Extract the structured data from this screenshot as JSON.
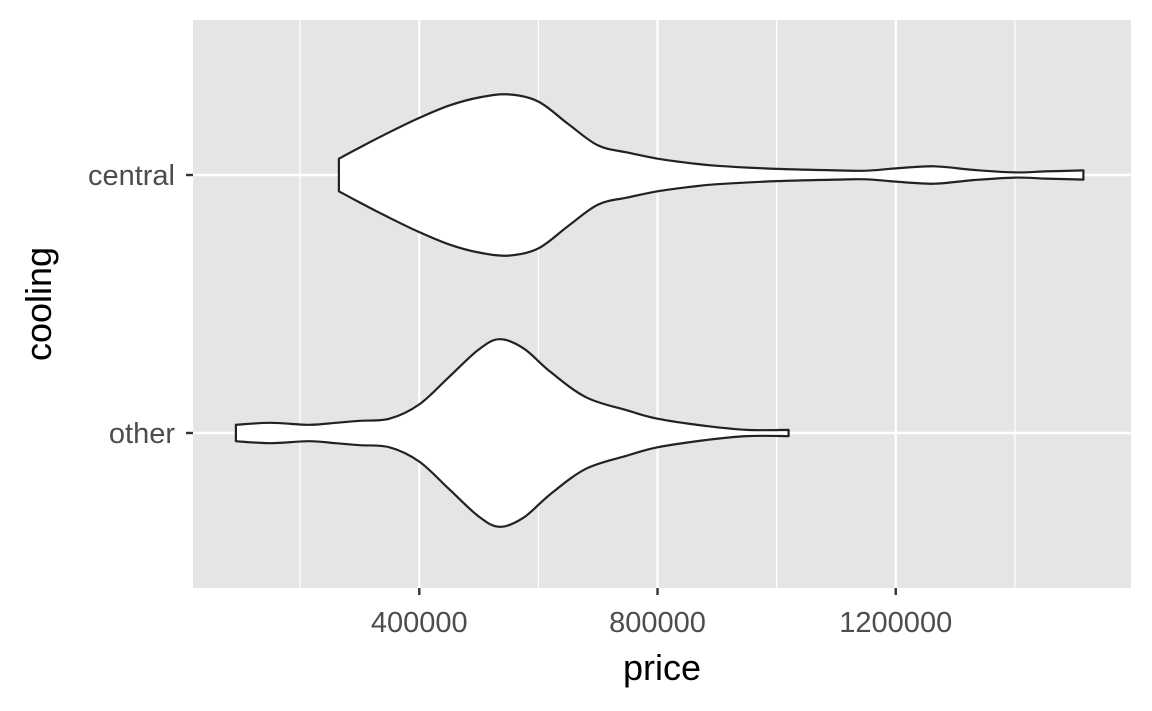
{
  "chart_data": {
    "type": "violin",
    "orientation": "horizontal",
    "xlabel": "price",
    "ylabel": "cooling",
    "xlim": [
      20000,
      1595000
    ],
    "x_major_ticks": [
      400000,
      800000,
      1200000
    ],
    "x_minor_ticks": [
      200000,
      600000,
      1000000,
      1400000
    ],
    "x_tick_labels": [
      "400000",
      "800000",
      "1200000"
    ],
    "categories": [
      "central",
      "other"
    ],
    "grid": true,
    "series": [
      {
        "category": "central",
        "min": 265000,
        "max": 1515000,
        "profile": [
          [
            265000,
            0.16
          ],
          [
            300000,
            0.27
          ],
          [
            350000,
            0.42
          ],
          [
            400000,
            0.56
          ],
          [
            450000,
            0.68
          ],
          [
            500000,
            0.76
          ],
          [
            550000,
            0.79
          ],
          [
            600000,
            0.72
          ],
          [
            650000,
            0.5
          ],
          [
            700000,
            0.29
          ],
          [
            750000,
            0.22
          ],
          [
            800000,
            0.16
          ],
          [
            850000,
            0.12
          ],
          [
            900000,
            0.09
          ],
          [
            1000000,
            0.06
          ],
          [
            1100000,
            0.045
          ],
          [
            1150000,
            0.042
          ],
          [
            1200000,
            0.065
          ],
          [
            1265000,
            0.085
          ],
          [
            1330000,
            0.05
          ],
          [
            1400000,
            0.025
          ],
          [
            1450000,
            0.035
          ],
          [
            1515000,
            0.045
          ]
        ]
      },
      {
        "category": "other",
        "min": 92000,
        "max": 1020000,
        "profile": [
          [
            92000,
            0.08
          ],
          [
            150000,
            0.1
          ],
          [
            215000,
            0.08
          ],
          [
            260000,
            0.1
          ],
          [
            300000,
            0.12
          ],
          [
            350000,
            0.14
          ],
          [
            400000,
            0.28
          ],
          [
            450000,
            0.55
          ],
          [
            500000,
            0.82
          ],
          [
            535000,
            0.92
          ],
          [
            575000,
            0.83
          ],
          [
            620000,
            0.6
          ],
          [
            680000,
            0.35
          ],
          [
            750000,
            0.22
          ],
          [
            800000,
            0.14
          ],
          [
            880000,
            0.07
          ],
          [
            950000,
            0.03
          ],
          [
            1020000,
            0.03
          ]
        ]
      }
    ]
  }
}
